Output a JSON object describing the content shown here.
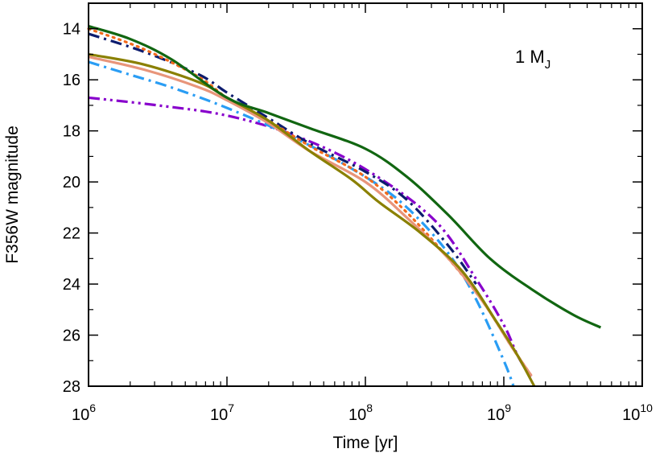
{
  "chart_data": {
    "type": "line",
    "title": "",
    "xlabel": "Time [yr]",
    "ylabel": "F356W magnitude",
    "xscale": "log",
    "xlim": [
      1000000,
      10000000000
    ],
    "ylim": [
      28,
      13
    ],
    "y_inverted": true,
    "grid": false,
    "legend": "none",
    "annotation": {
      "main": "1 M",
      "subscript": "J",
      "placement": "top-right"
    },
    "xticks": [
      {
        "base": "10",
        "exp": "6"
      },
      {
        "base": "10",
        "exp": "7"
      },
      {
        "base": "10",
        "exp": "8"
      },
      {
        "base": "10",
        "exp": "9"
      },
      {
        "base": "10",
        "exp": "10"
      }
    ],
    "yticks": [
      "14",
      "16",
      "18",
      "20",
      "22",
      "24",
      "26",
      "28"
    ],
    "series": [
      {
        "color": "#8800cc",
        "dash": "dashdotdot",
        "points": [
          [
            6.0,
            16.7
          ],
          [
            6.5,
            17.0
          ],
          [
            7.0,
            17.4
          ],
          [
            7.5,
            18.2
          ],
          [
            8.0,
            19.5
          ],
          [
            8.5,
            21.5
          ],
          [
            8.8,
            23.8
          ],
          [
            9.0,
            25.6
          ],
          [
            9.1,
            26.8
          ],
          [
            9.2,
            27.7
          ]
        ]
      },
      {
        "color": "#2a9df4",
        "dash": "dashdot",
        "points": [
          [
            6.0,
            15.3
          ],
          [
            6.3,
            15.8
          ],
          [
            6.6,
            16.3
          ],
          [
            7.0,
            17.1
          ],
          [
            7.5,
            18.3
          ],
          [
            8.0,
            19.8
          ],
          [
            8.3,
            21.0
          ],
          [
            8.6,
            22.8
          ],
          [
            8.8,
            24.6
          ],
          [
            9.0,
            27.0
          ],
          [
            9.07,
            28.0
          ]
        ]
      },
      {
        "color": "#0d1c6e",
        "dash": "dashdot",
        "points": [
          [
            6.0,
            14.2
          ],
          [
            6.4,
            14.9
          ],
          [
            6.8,
            15.8
          ],
          [
            7.0,
            16.5
          ],
          [
            7.3,
            17.5
          ],
          [
            7.6,
            18.5
          ],
          [
            8.0,
            19.6
          ],
          [
            8.3,
            20.7
          ],
          [
            8.6,
            22.5
          ],
          [
            8.8,
            24.0
          ]
        ]
      },
      {
        "color": "#f26a1b",
        "dash": "dotted",
        "points": [
          [
            6.0,
            14.0
          ],
          [
            6.4,
            14.8
          ],
          [
            6.8,
            15.9
          ],
          [
            7.0,
            16.7
          ],
          [
            7.3,
            17.6
          ],
          [
            7.6,
            18.6
          ],
          [
            8.0,
            19.8
          ],
          [
            8.3,
            21.2
          ],
          [
            8.6,
            23.0
          ],
          [
            8.85,
            24.7
          ],
          [
            9.05,
            26.4
          ],
          [
            9.2,
            27.6
          ]
        ]
      },
      {
        "color": "#e8957a",
        "dash": "solid",
        "points": [
          [
            6.0,
            15.1
          ],
          [
            6.4,
            15.6
          ],
          [
            6.8,
            16.3
          ],
          [
            7.0,
            16.8
          ],
          [
            7.3,
            17.7
          ],
          [
            7.6,
            18.8
          ],
          [
            8.0,
            20.0
          ],
          [
            8.3,
            21.4
          ],
          [
            8.6,
            23.0
          ],
          [
            8.85,
            24.7
          ],
          [
            9.05,
            26.4
          ],
          [
            9.2,
            27.6
          ]
        ]
      },
      {
        "color": "#8a8000",
        "dash": "solid",
        "points": [
          [
            6.0,
            15.0
          ],
          [
            6.4,
            15.4
          ],
          [
            6.8,
            16.1
          ],
          [
            7.0,
            16.7
          ],
          [
            7.3,
            17.6
          ],
          [
            7.6,
            18.8
          ],
          [
            7.9,
            19.9
          ],
          [
            8.1,
            20.8
          ],
          [
            8.4,
            22.0
          ],
          [
            8.7,
            23.5
          ],
          [
            8.95,
            25.5
          ],
          [
            9.1,
            26.8
          ],
          [
            9.22,
            28.0
          ]
        ]
      },
      {
        "color": "#116611",
        "dash": "solid",
        "points": [
          [
            6.0,
            13.9
          ],
          [
            6.3,
            14.4
          ],
          [
            6.6,
            15.2
          ],
          [
            7.0,
            16.7
          ],
          [
            7.3,
            17.3
          ],
          [
            7.6,
            17.9
          ],
          [
            8.0,
            18.7
          ],
          [
            8.3,
            19.8
          ],
          [
            8.6,
            21.3
          ],
          [
            8.9,
            23.0
          ],
          [
            9.2,
            24.2
          ],
          [
            9.5,
            25.2
          ],
          [
            9.7,
            25.7
          ]
        ]
      }
    ]
  }
}
